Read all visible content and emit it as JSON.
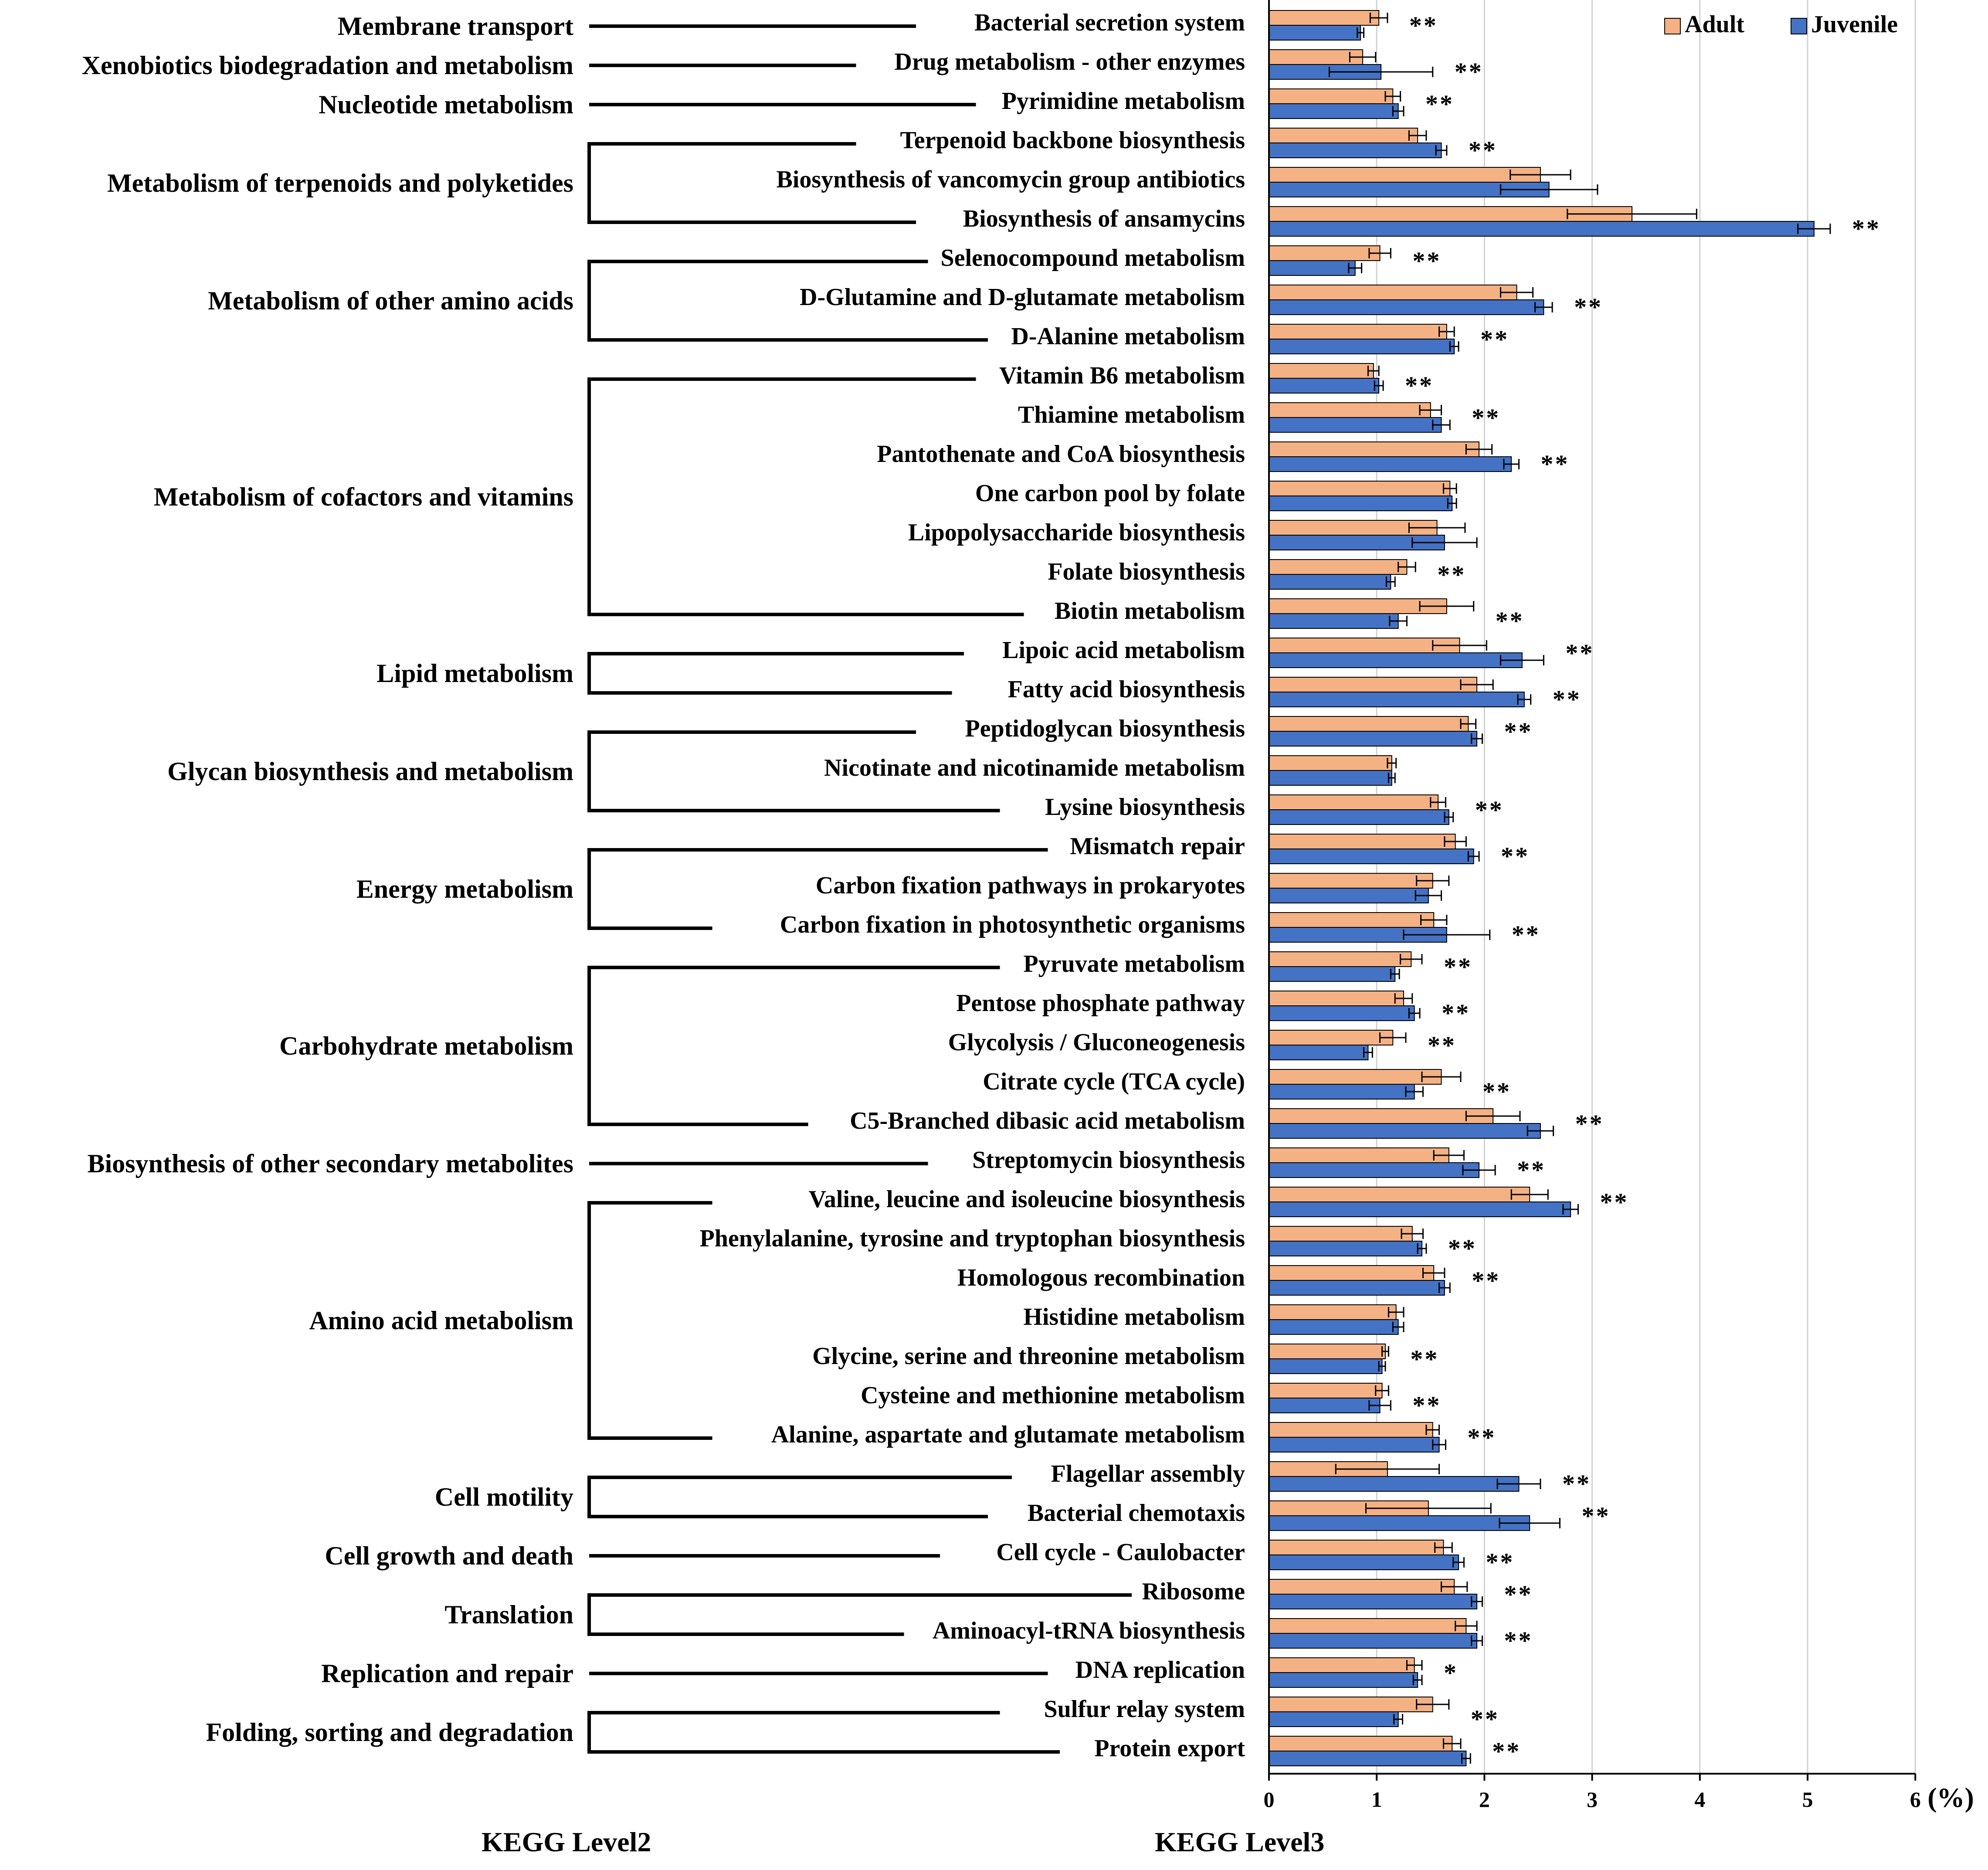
{
  "chart_data": {
    "type": "bar",
    "orientation": "horizontal",
    "x_unit": "(%)",
    "xlim": [
      0,
      6
    ],
    "x_ticks": [
      "0",
      "1",
      "2",
      "3",
      "4",
      "5",
      "6"
    ],
    "grid": "vertical",
    "xlabel_level2": "KEGG Level2",
    "xlabel_level3": "KEGG Level3",
    "legend": {
      "position": "top-right",
      "items": [
        {
          "name": "Adult",
          "color": "#f4b183"
        },
        {
          "name": "Juvenile",
          "color": "#4472c4"
        }
      ]
    },
    "series_names": [
      "Adult",
      "Juvenile"
    ],
    "categories": [
      {
        "name": "Bacterial secretion system",
        "adult": 1.02,
        "adult_err": 0.08,
        "juvenile": 0.85,
        "juvenile_err": 0.03,
        "sig": "**"
      },
      {
        "name": "Drug metabolism - other enzymes",
        "adult": 0.87,
        "adult_err": 0.12,
        "juvenile": 1.04,
        "juvenile_err": 0.48,
        "sig": "**"
      },
      {
        "name": "Pyrimidine metabolism",
        "adult": 1.15,
        "adult_err": 0.07,
        "juvenile": 1.2,
        "juvenile_err": 0.05,
        "sig": "**"
      },
      {
        "name": "Terpenoid backbone biosynthesis",
        "adult": 1.38,
        "adult_err": 0.08,
        "juvenile": 1.6,
        "juvenile_err": 0.05,
        "sig": "**"
      },
      {
        "name": "Biosynthesis of vancomycin group antibiotics",
        "adult": 2.52,
        "adult_err": 0.28,
        "juvenile": 2.6,
        "juvenile_err": 0.45,
        "sig": ""
      },
      {
        "name": "Biosynthesis of ansamycins",
        "adult": 3.37,
        "adult_err": 0.6,
        "juvenile": 5.06,
        "juvenile_err": 0.15,
        "sig": "**"
      },
      {
        "name": "Selenocompound metabolism",
        "adult": 1.03,
        "adult_err": 0.1,
        "juvenile": 0.8,
        "juvenile_err": 0.06,
        "sig": "**"
      },
      {
        "name": "D-Glutamine and D-glutamate metabolism",
        "adult": 2.3,
        "adult_err": 0.15,
        "juvenile": 2.55,
        "juvenile_err": 0.08,
        "sig": "**"
      },
      {
        "name": "D-Alanine metabolism",
        "adult": 1.65,
        "adult_err": 0.07,
        "juvenile": 1.72,
        "juvenile_err": 0.04,
        "sig": "**"
      },
      {
        "name": "Vitamin B6 metabolism",
        "adult": 0.97,
        "adult_err": 0.05,
        "juvenile": 1.02,
        "juvenile_err": 0.04,
        "sig": "**"
      },
      {
        "name": "Thiamine metabolism",
        "adult": 1.5,
        "adult_err": 0.1,
        "juvenile": 1.6,
        "juvenile_err": 0.08,
        "sig": "**"
      },
      {
        "name": "Pantothenate and CoA biosynthesis",
        "adult": 1.95,
        "adult_err": 0.12,
        "juvenile": 2.25,
        "juvenile_err": 0.07,
        "sig": "**"
      },
      {
        "name": "One carbon pool by folate",
        "adult": 1.68,
        "adult_err": 0.06,
        "juvenile": 1.7,
        "juvenile_err": 0.04,
        "sig": ""
      },
      {
        "name": "Lipopolysaccharide biosynthesis",
        "adult": 1.56,
        "adult_err": 0.26,
        "juvenile": 1.63,
        "juvenile_err": 0.3,
        "sig": ""
      },
      {
        "name": "Folate biosynthesis",
        "adult": 1.28,
        "adult_err": 0.08,
        "juvenile": 1.13,
        "juvenile_err": 0.04,
        "sig": "**"
      },
      {
        "name": "Biotin metabolism",
        "adult": 1.65,
        "adult_err": 0.25,
        "juvenile": 1.2,
        "juvenile_err": 0.08,
        "sig": "**"
      },
      {
        "name": "Lipoic acid metabolism",
        "adult": 1.77,
        "adult_err": 0.25,
        "juvenile": 2.35,
        "juvenile_err": 0.2,
        "sig": "**"
      },
      {
        "name": "Fatty acid biosynthesis",
        "adult": 1.93,
        "adult_err": 0.15,
        "juvenile": 2.37,
        "juvenile_err": 0.06,
        "sig": "**"
      },
      {
        "name": "Peptidoglycan biosynthesis",
        "adult": 1.85,
        "adult_err": 0.07,
        "juvenile": 1.93,
        "juvenile_err": 0.05,
        "sig": "**"
      },
      {
        "name": "Nicotinate and nicotinamide metabolism",
        "adult": 1.14,
        "adult_err": 0.04,
        "juvenile": 1.14,
        "juvenile_err": 0.03,
        "sig": ""
      },
      {
        "name": "Lysine biosynthesis",
        "adult": 1.57,
        "adult_err": 0.07,
        "juvenile": 1.67,
        "juvenile_err": 0.04,
        "sig": "**"
      },
      {
        "name": "Mismatch repair",
        "adult": 1.73,
        "adult_err": 0.1,
        "juvenile": 1.9,
        "juvenile_err": 0.05,
        "sig": "**"
      },
      {
        "name": "Carbon fixation pathways in prokaryotes",
        "adult": 1.52,
        "adult_err": 0.15,
        "juvenile": 1.48,
        "juvenile_err": 0.12,
        "sig": ""
      },
      {
        "name": "Carbon fixation in photosynthetic organisms",
        "adult": 1.53,
        "adult_err": 0.12,
        "juvenile": 1.65,
        "juvenile_err": 0.4,
        "sig": "**"
      },
      {
        "name": "Pyruvate metabolism",
        "adult": 1.32,
        "adult_err": 0.1,
        "juvenile": 1.17,
        "juvenile_err": 0.04,
        "sig": "**"
      },
      {
        "name": "Pentose phosphate pathway",
        "adult": 1.25,
        "adult_err": 0.08,
        "juvenile": 1.35,
        "juvenile_err": 0.05,
        "sig": "**"
      },
      {
        "name": "Glycolysis / Gluconeogenesis",
        "adult": 1.15,
        "adult_err": 0.12,
        "juvenile": 0.92,
        "juvenile_err": 0.04,
        "sig": "**"
      },
      {
        "name": "Citrate cycle (TCA cycle)",
        "adult": 1.6,
        "adult_err": 0.18,
        "juvenile": 1.35,
        "juvenile_err": 0.08,
        "sig": "**"
      },
      {
        "name": "C5-Branched dibasic acid metabolism",
        "adult": 2.08,
        "adult_err": 0.25,
        "juvenile": 2.52,
        "juvenile_err": 0.12,
        "sig": "**"
      },
      {
        "name": "Streptomycin biosynthesis",
        "adult": 1.67,
        "adult_err": 0.14,
        "juvenile": 1.95,
        "juvenile_err": 0.15,
        "sig": "**"
      },
      {
        "name": "Valine, leucine and isoleucine biosynthesis",
        "adult": 2.42,
        "adult_err": 0.17,
        "juvenile": 2.8,
        "juvenile_err": 0.07,
        "sig": "**"
      },
      {
        "name": "Phenylalanine, tyrosine and tryptophan biosynthesis",
        "adult": 1.33,
        "adult_err": 0.1,
        "juvenile": 1.42,
        "juvenile_err": 0.04,
        "sig": "**"
      },
      {
        "name": "Homologous recombination",
        "adult": 1.53,
        "adult_err": 0.1,
        "juvenile": 1.63,
        "juvenile_err": 0.05,
        "sig": "**"
      },
      {
        "name": "Histidine metabolism",
        "adult": 1.18,
        "adult_err": 0.07,
        "juvenile": 1.2,
        "juvenile_err": 0.05,
        "sig": ""
      },
      {
        "name": "Glycine, serine and threonine metabolism",
        "adult": 1.08,
        "adult_err": 0.03,
        "juvenile": 1.05,
        "juvenile_err": 0.03,
        "sig": "**"
      },
      {
        "name": "Cysteine and methionine metabolism",
        "adult": 1.05,
        "adult_err": 0.06,
        "juvenile": 1.03,
        "juvenile_err": 0.1,
        "sig": "**"
      },
      {
        "name": "Alanine, aspartate and glutamate metabolism",
        "adult": 1.52,
        "adult_err": 0.06,
        "juvenile": 1.58,
        "juvenile_err": 0.06,
        "sig": "**"
      },
      {
        "name": "Flagellar assembly",
        "adult": 1.1,
        "adult_err": 0.48,
        "juvenile": 2.32,
        "juvenile_err": 0.2,
        "sig": "**"
      },
      {
        "name": "Bacterial chemotaxis",
        "adult": 1.48,
        "adult_err": 0.58,
        "juvenile": 2.42,
        "juvenile_err": 0.28,
        "sig": "**"
      },
      {
        "name": "Cell cycle - Caulobacter",
        "adult": 1.62,
        "adult_err": 0.08,
        "juvenile": 1.76,
        "juvenile_err": 0.05,
        "sig": "**"
      },
      {
        "name": "Ribosome",
        "adult": 1.72,
        "adult_err": 0.12,
        "juvenile": 1.93,
        "juvenile_err": 0.05,
        "sig": "**"
      },
      {
        "name": "Aminoacyl-tRNA biosynthesis",
        "adult": 1.83,
        "adult_err": 0.1,
        "juvenile": 1.93,
        "juvenile_err": 0.05,
        "sig": "**"
      },
      {
        "name": "DNA replication",
        "adult": 1.35,
        "adult_err": 0.07,
        "juvenile": 1.38,
        "juvenile_err": 0.04,
        "sig": "*"
      },
      {
        "name": "Sulfur relay system",
        "adult": 1.52,
        "adult_err": 0.15,
        "juvenile": 1.2,
        "juvenile_err": 0.04,
        "sig": "**"
      },
      {
        "name": "Protein export",
        "adult": 1.7,
        "adult_err": 0.08,
        "juvenile": 1.83,
        "juvenile_err": 0.04,
        "sig": "**"
      }
    ],
    "level2_groups": [
      {
        "name": "Membrane transport",
        "start": 0,
        "end": 0
      },
      {
        "name": "Xenobiotics biodegradation and metabolism",
        "start": 1,
        "end": 1
      },
      {
        "name": "Nucleotide metabolism",
        "start": 2,
        "end": 2
      },
      {
        "name": "Metabolism of terpenoids and polyketides",
        "start": 3,
        "end": 5
      },
      {
        "name": "Metabolism of other amino acids",
        "start": 6,
        "end": 8
      },
      {
        "name": "Metabolism of cofactors and vitamins",
        "start": 9,
        "end": 15
      },
      {
        "name": "Lipid metabolism",
        "start": 16,
        "end": 17
      },
      {
        "name": "Glycan biosynthesis and metabolism",
        "start": 18,
        "end": 20
      },
      {
        "name": "Energy metabolism",
        "start": 21,
        "end": 23
      },
      {
        "name": "Carbohydrate metabolism",
        "start": 24,
        "end": 28
      },
      {
        "name": "Biosynthesis of other secondary metabolites",
        "start": 29,
        "end": 29
      },
      {
        "name": "Amino acid metabolism",
        "start": 30,
        "end": 36
      },
      {
        "name": "Cell motility",
        "start": 37,
        "end": 38
      },
      {
        "name": "Cell growth and death",
        "start": 39,
        "end": 39
      },
      {
        "name": "Translation",
        "start": 40,
        "end": 41
      },
      {
        "name": "Replication and repair",
        "start": 42,
        "end": 42
      },
      {
        "name": "Folding, sorting and degradation",
        "start": 43,
        "end": 44
      }
    ]
  }
}
